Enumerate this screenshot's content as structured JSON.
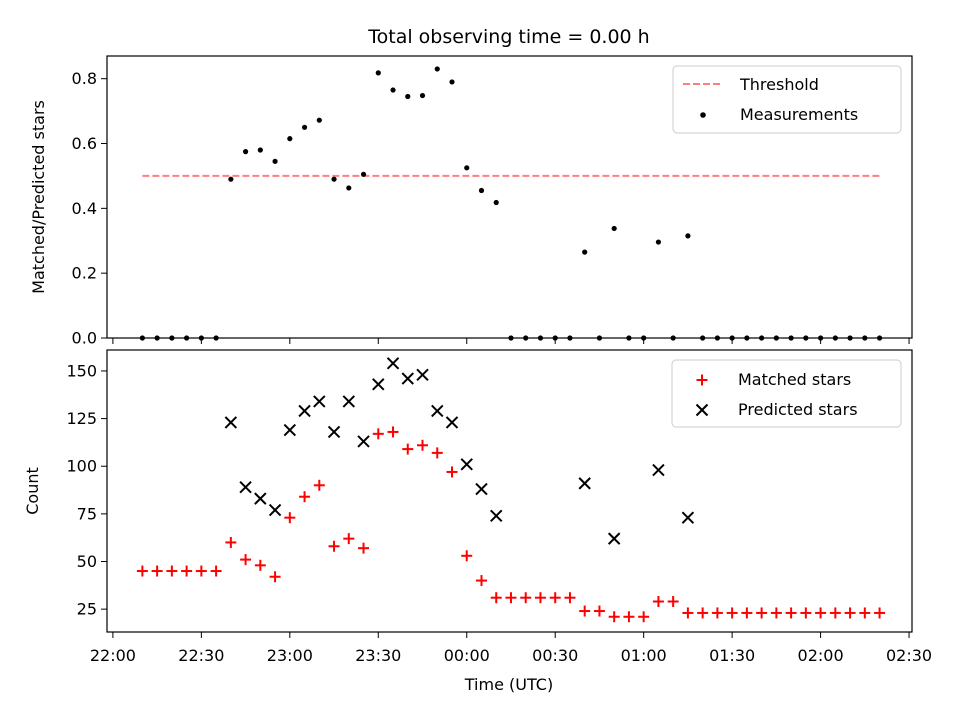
{
  "chart_data": {
    "title": "Total observing time = 0.00 h",
    "xlabel": "Time (UTC)",
    "xticks": [
      "22:00",
      "22:30",
      "23:00",
      "23:30",
      "00:00",
      "00:30",
      "01:00",
      "01:30",
      "02:00",
      "02:30"
    ],
    "xlim": [
      "21:58",
      "02:31"
    ],
    "x_times": [
      "22:10",
      "22:15",
      "22:20",
      "22:25",
      "22:30",
      "22:35",
      "22:40",
      "22:45",
      "22:50",
      "22:55",
      "23:00",
      "23:05",
      "23:10",
      "23:15",
      "23:20",
      "23:25",
      "23:30",
      "23:35",
      "23:40",
      "23:45",
      "23:50",
      "23:55",
      "00:00",
      "00:05",
      "00:10",
      "00:15",
      "00:20",
      "00:25",
      "00:30",
      "00:35",
      "00:40",
      "00:45",
      "00:50",
      "00:55",
      "01:00",
      "01:05",
      "01:10",
      "01:15",
      "01:20",
      "01:25",
      "01:30",
      "01:35",
      "01:40",
      "01:45",
      "01:50",
      "01:55",
      "02:00",
      "02:05",
      "02:10",
      "02:15",
      "02:20"
    ],
    "charts": [
      {
        "type": "scatter",
        "ylabel": "Matched/Predicted stars",
        "ylim": [
          0,
          0.87
        ],
        "yticks": [
          "0.0",
          "0.2",
          "0.4",
          "0.6",
          "0.8"
        ],
        "threshold": {
          "name": "Threshold",
          "value": 0.5,
          "color": "#ff7f7f",
          "x_start": "22:10",
          "x_end": "02:20"
        },
        "series": [
          {
            "name": "Measurements",
            "color": "#000000",
            "y": [
              0,
              0,
              0,
              0,
              0,
              0,
              0.49,
              0.575,
              0.58,
              0.545,
              0.615,
              0.65,
              0.672,
              0.49,
              0.463,
              0.505,
              0.818,
              0.765,
              0.745,
              0.748,
              0.83,
              0.79,
              0.525,
              0.455,
              0.418,
              0,
              0,
              0,
              0,
              0,
              0.265,
              0,
              0.338,
              0,
              0,
              0.296,
              0,
              0.315,
              0,
              0,
              0,
              0,
              0,
              0,
              0,
              0,
              0,
              0,
              0,
              0,
              0
            ]
          }
        ],
        "legend_position": "upper right"
      },
      {
        "type": "scatter",
        "ylabel": "Count",
        "ylim": [
          13,
          161
        ],
        "yticks": [
          "25",
          "50",
          "75",
          "100",
          "125",
          "150"
        ],
        "series": [
          {
            "name": "Matched stars",
            "color": "#ff0000",
            "marker": "+",
            "y": [
              45,
              45,
              45,
              45,
              45,
              45,
              60,
              51,
              48,
              42,
              73,
              84,
              90,
              58,
              62,
              57,
              117,
              118,
              109,
              111,
              107,
              97,
              53,
              40,
              31,
              31,
              31,
              31,
              31,
              31,
              24,
              24,
              21,
              21,
              21,
              29,
              29,
              23,
              23,
              23,
              23,
              23,
              23,
              23,
              23,
              23,
              23,
              23,
              23,
              23,
              23
            ]
          },
          {
            "name": "Predicted stars",
            "color": "#000000",
            "marker": "x",
            "y": [
              null,
              null,
              null,
              null,
              null,
              null,
              123,
              89,
              83,
              77,
              119,
              129,
              134,
              118,
              134,
              113,
              143,
              154,
              146,
              148,
              129,
              123,
              101,
              88,
              74,
              null,
              null,
              null,
              null,
              null,
              91,
              null,
              62,
              null,
              null,
              98,
              null,
              73,
              null,
              null,
              null,
              null,
              null,
              null,
              null,
              null,
              null,
              null,
              null,
              null,
              null
            ]
          }
        ],
        "legend_position": "upper right"
      }
    ]
  }
}
